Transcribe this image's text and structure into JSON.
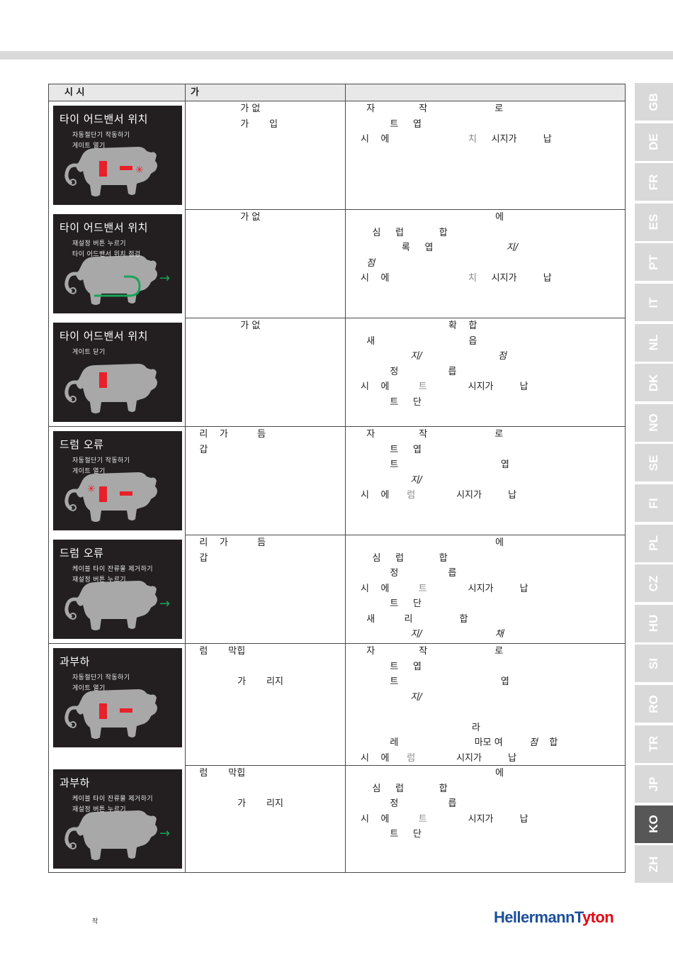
{
  "table_header": {
    "col1": "시          시",
    "col2": "가",
    "col3": ""
  },
  "rows": [
    {
      "panel": {
        "title": "타이 어드밴서 위치",
        "lines": [
          "자동절단기 작동하기",
          "게이트 열기"
        ]
      },
      "cause": "                 가 없\n                 가       입",
      "action": "  자               작                       로\n          트     엽\n시    에                           치     시지가         납",
      "action_grey": [
        "치"
      ]
    },
    {
      "panel": {
        "title": "타이 어드밴서 위치",
        "lines": [
          "재설정 버튼 누르기",
          "타이 어드밴서 위치 점검"
        ]
      },
      "cause": "                 가 없",
      "action": "                                              에\n    심     럽            합\n              록     엽                         지/\n  점\n시    에                           치     시지가         납",
      "action_grey": [
        "치"
      ]
    },
    {
      "panel": {
        "title": "타이 어드밴서 위치",
        "lines": [
          "게이트 닫기"
        ]
      },
      "cause": "                 가 없",
      "action": "                              확    합\n  새                                읍\n                 지/                          점\n          정                 릅\n시    에          트              시지가         납\n          트     단",
      "action_grey": [
        "트"
      ]
    },
    {
      "panel": {
        "title": "드럼 오류",
        "lines": [
          "자동절단기 작동하기",
          "게이트 열기"
        ]
      },
      "cause": "   리    가          듬\n   갑",
      "action": "  자               작                       로\n          트     엽\n          트                                   엽\n                 지/\n시    에      럼              시지가         납",
      "action_grey": [
        "럼"
      ]
    },
    {
      "panel": {
        "title": "드럼 오류",
        "lines": [
          "케이블 타이 잔류물 제거하기",
          "재설정 버튼 누르기"
        ]
      },
      "cause": "   리    가          듬\n   갑",
      "action": "                                              에\n    심     럽            합\n          정                 릅\n시    에          트              시지가         납\n          트     단\n  새          리                합\n                 지/                         채",
      "action_grey": [
        "트"
      ]
    },
    {
      "panel": {
        "title": "과부하",
        "lines": [
          "자동절단기 작동하기",
          "게이트 열기"
        ]
      },
      "cause": "   럼       막힙\n\n                가       리지",
      "action": "  자               작                       로\n          트     엽\n          트                                   엽\n                 지/\n\n                                      라\n          레                          마모 여         점    합\n시    에      럼              시지가         납",
      "action_grey": [
        "럼"
      ]
    },
    {
      "panel": {
        "title": "과부하",
        "lines": [
          "케이블 타이 잔류물 제거하기",
          "재설정 버튼 누르기"
        ]
      },
      "cause": "   럼       막힙\n\n                가       리지",
      "action": "                                              에\n    심     럽            합\n          정                 릅\n시    에          트              시지가         납\n          트     단",
      "action_grey": [
        "트"
      ]
    }
  ],
  "tabs": [
    "GB",
    "DE",
    "FR",
    "ES",
    "PT",
    "IT",
    "NL",
    "DK",
    "NO",
    "SE",
    "FI",
    "PL",
    "CZ",
    "HU",
    "SI",
    "RO",
    "TR",
    "JP",
    "KO",
    "ZH"
  ],
  "active_tab": "KO",
  "footer_note": "작",
  "logo": {
    "part1": "HellermannT",
    "part2": "yton"
  },
  "colors": {
    "red": "#e8202a",
    "green": "#1ba35a",
    "panel_bg": "#231f20",
    "machine_grey": "#a8a8a8",
    "logo_blue": "#1b4f9c",
    "logo_red": "#e30613"
  }
}
